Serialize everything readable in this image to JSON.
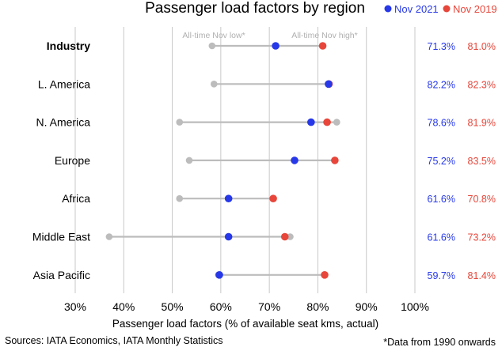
{
  "chart_data": {
    "type": "dot-range",
    "title": "Passenger load factors by region",
    "series": [
      {
        "name": "Nov 2021",
        "color": "#2638e8"
      },
      {
        "name": "Nov 2019",
        "color": "#e8463a"
      }
    ],
    "range_color": "#bcbcbc",
    "categories": [
      "Industry",
      "L. America",
      "N. America",
      "Europe",
      "Africa",
      "Middle East",
      "Asia Pacific"
    ],
    "bold_categories": [
      "Industry"
    ],
    "nov2021": [
      71.3,
      82.2,
      78.6,
      75.2,
      61.6,
      61.6,
      59.7
    ],
    "nov2019": [
      81.0,
      82.3,
      81.9,
      83.5,
      70.8,
      73.2,
      81.4
    ],
    "alltime_nov_low": [
      58.2,
      58.6,
      51.5,
      53.5,
      51.5,
      37.0,
      59.5
    ],
    "alltime_nov_high": [
      81.0,
      82.3,
      83.9,
      83.5,
      70.8,
      74.3,
      81.4
    ],
    "value_labels_2021": [
      "71.3%",
      "82.2%",
      "78.6%",
      "75.2%",
      "61.6%",
      "61.6%",
      "59.7%"
    ],
    "value_labels_2019": [
      "81.0%",
      "82.3%",
      "81.9%",
      "83.5%",
      "70.8%",
      "73.2%",
      "81.4%"
    ],
    "annotations": [
      "All-time Nov low*",
      "All-time Nov high*"
    ],
    "xlim": [
      30,
      100
    ],
    "x_ticks": [
      "30%",
      "40%",
      "50%",
      "60%",
      "70%",
      "80%",
      "90%",
      "100%"
    ],
    "xlabel": "Passenger load factors (% of available seat kms, actual)",
    "grid": true,
    "legend": "top-right"
  },
  "footer": {
    "sources": "Sources: IATA Economics, IATA Monthly Statistics",
    "footnote": "*Data from 1990 onwards"
  }
}
